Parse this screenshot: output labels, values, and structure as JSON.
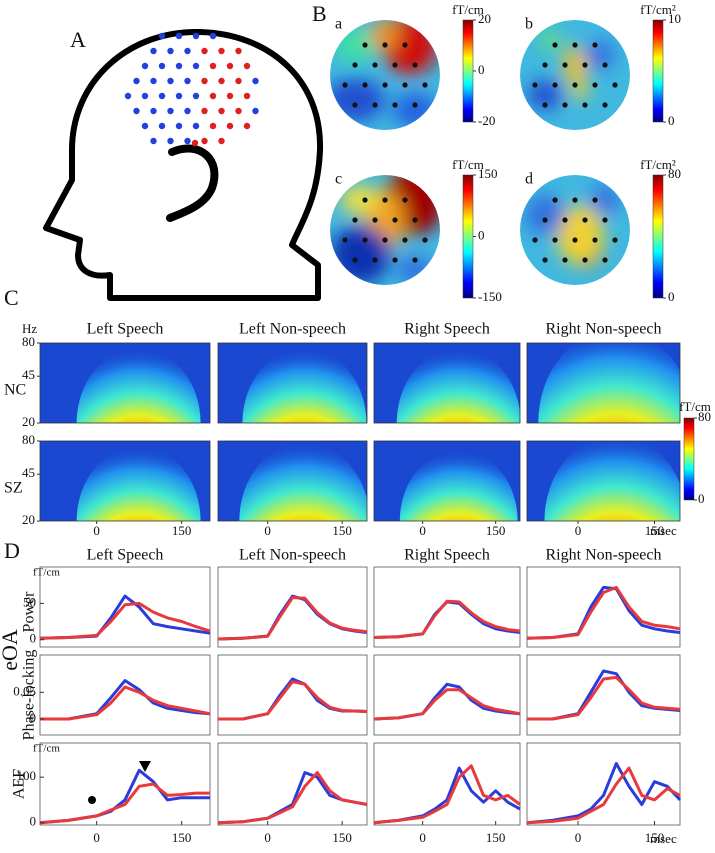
{
  "panel_a": {
    "label": "A"
  },
  "panel_b": {
    "label": "B",
    "maps": [
      {
        "label": "a",
        "unit": "fT/cm",
        "lim": [
          -20,
          20
        ],
        "ticks": [
          20,
          0,
          -20
        ]
      },
      {
        "label": "b",
        "unit": "fT/cm²",
        "lim": [
          0,
          10
        ],
        "ticks": [
          10,
          0
        ]
      },
      {
        "label": "c",
        "unit": "fT/cm",
        "lim": [
          -150,
          150
        ],
        "ticks": [
          150,
          0,
          -150
        ]
      },
      {
        "label": "d",
        "unit": "fT/cm²",
        "lim": [
          0,
          80
        ],
        "ticks": [
          80,
          0
        ]
      }
    ]
  },
  "panel_c": {
    "label": "C",
    "columns": [
      "Left Speech",
      "Left Non-speech",
      "Right Speech",
      "Right Non-speech"
    ],
    "rows": [
      "NC",
      "SZ"
    ],
    "y_unit": "Hz",
    "ylim": [
      20,
      80
    ],
    "yticks": [
      80,
      45,
      20
    ],
    "log_y": true,
    "xlim": [
      -100,
      200
    ],
    "xticks": [
      0,
      150
    ],
    "x_unit": "msec",
    "colorbar": {
      "unit": "fT/cm",
      "lim": [
        0,
        80
      ],
      "ticks": [
        80,
        0
      ]
    }
  },
  "panel_d": {
    "label": "D",
    "columns": [
      "Left Speech",
      "Left Non-speech",
      "Right Speech",
      "Right Non-speech"
    ],
    "group_label": "eOA",
    "x_unit": "msec"
  },
  "chart_data": [
    {
      "type": "line",
      "ylabel": "Power",
      "y_unit": "fT/cm",
      "yticks": [
        0,
        50
      ],
      "xlim": [
        -100,
        200
      ],
      "ylim": [
        -10,
        100
      ],
      "x": [
        -100,
        -50,
        0,
        25,
        50,
        75,
        100,
        125,
        150,
        175,
        200
      ],
      "series": [
        {
          "color": "#2a3cdc",
          "values": [
            2,
            3,
            5,
            30,
            60,
            45,
            22,
            18,
            15,
            12,
            9
          ]
        },
        {
          "color": "#e83a3a",
          "values": [
            2,
            3,
            6,
            25,
            48,
            50,
            38,
            30,
            25,
            18,
            12
          ]
        }
      ]
    },
    {
      "type": "line",
      "xlim": [
        -100,
        200
      ],
      "ylim": [
        -10,
        100
      ],
      "x": [
        -100,
        -50,
        0,
        25,
        50,
        75,
        100,
        125,
        150,
        175,
        200
      ],
      "series": [
        {
          "color": "#2a3cdc",
          "values": [
            1,
            2,
            5,
            35,
            60,
            55,
            35,
            22,
            15,
            12,
            10
          ]
        },
        {
          "color": "#e83a3a",
          "values": [
            1,
            2,
            5,
            32,
            58,
            57,
            37,
            23,
            16,
            13,
            11
          ]
        }
      ]
    },
    {
      "type": "line",
      "xlim": [
        -100,
        200
      ],
      "ylim": [
        -10,
        100
      ],
      "x": [
        -100,
        -50,
        0,
        25,
        50,
        75,
        100,
        125,
        150,
        175,
        200
      ],
      "series": [
        {
          "color": "#2a3cdc",
          "values": [
            3,
            4,
            8,
            35,
            52,
            50,
            35,
            22,
            15,
            12,
            10
          ]
        },
        {
          "color": "#e83a3a",
          "values": [
            3,
            4,
            8,
            33,
            53,
            52,
            37,
            25,
            18,
            14,
            12
          ]
        }
      ]
    },
    {
      "type": "line",
      "xlim": [
        -100,
        200
      ],
      "ylim": [
        -10,
        100
      ],
      "x": [
        -100,
        -50,
        0,
        25,
        50,
        75,
        100,
        125,
        150,
        175,
        200
      ],
      "series": [
        {
          "color": "#2a3cdc",
          "values": [
            2,
            3,
            8,
            45,
            72,
            70,
            40,
            20,
            15,
            12,
            10
          ]
        },
        {
          "color": "#e83a3a",
          "values": [
            2,
            3,
            7,
            38,
            65,
            72,
            45,
            25,
            20,
            18,
            15
          ]
        }
      ]
    },
    {
      "type": "line",
      "ylabel": "Phase-locking",
      "yticks": [
        0,
        0.05
      ],
      "xlim": [
        -100,
        200
      ],
      "ylim": [
        -0.03,
        0.12
      ],
      "x": [
        -100,
        -50,
        0,
        25,
        50,
        75,
        100,
        125,
        150,
        175,
        200
      ],
      "series": [
        {
          "color": "#2a3cdc",
          "values": [
            0,
            0,
            0.01,
            0.04,
            0.072,
            0.055,
            0.03,
            0.02,
            0.016,
            0.012,
            0.01
          ]
        },
        {
          "color": "#e83a3a",
          "values": [
            0,
            0,
            0.008,
            0.03,
            0.06,
            0.05,
            0.035,
            0.025,
            0.02,
            0.015,
            0.01
          ]
        }
      ]
    },
    {
      "type": "line",
      "xlim": [
        -100,
        200
      ],
      "ylim": [
        -0.03,
        0.12
      ],
      "x": [
        -100,
        -50,
        0,
        25,
        50,
        75,
        100,
        125,
        150,
        175,
        200
      ],
      "series": [
        {
          "color": "#2a3cdc",
          "values": [
            0,
            0,
            0.01,
            0.045,
            0.075,
            0.065,
            0.035,
            0.02,
            0.015,
            0.015,
            0.014
          ]
        },
        {
          "color": "#e83a3a",
          "values": [
            0,
            0,
            0.01,
            0.04,
            0.07,
            0.065,
            0.04,
            0.022,
            0.016,
            0.015,
            0.014
          ]
        }
      ]
    },
    {
      "type": "line",
      "xlim": [
        -100,
        200
      ],
      "ylim": [
        -0.03,
        0.12
      ],
      "x": [
        -100,
        -50,
        0,
        25,
        50,
        75,
        100,
        125,
        150,
        175,
        200
      ],
      "series": [
        {
          "color": "#2a3cdc",
          "values": [
            0,
            0.002,
            0.01,
            0.04,
            0.065,
            0.06,
            0.035,
            0.02,
            0.015,
            0.012,
            0.01
          ]
        },
        {
          "color": "#e83a3a",
          "values": [
            0,
            0.002,
            0.01,
            0.035,
            0.055,
            0.055,
            0.04,
            0.025,
            0.018,
            0.014,
            0.01
          ]
        }
      ]
    },
    {
      "type": "line",
      "xlim": [
        -100,
        200
      ],
      "ylim": [
        -0.03,
        0.12
      ],
      "x": [
        -100,
        -50,
        0,
        25,
        50,
        75,
        100,
        125,
        150,
        175,
        200
      ],
      "series": [
        {
          "color": "#2a3cdc",
          "values": [
            0,
            0,
            0.01,
            0.05,
            0.09,
            0.085,
            0.05,
            0.025,
            0.02,
            0.018,
            0.016
          ]
        },
        {
          "color": "#e83a3a",
          "values": [
            0,
            0,
            0.008,
            0.04,
            0.075,
            0.078,
            0.055,
            0.03,
            0.022,
            0.02,
            0.018
          ]
        }
      ]
    },
    {
      "type": "line",
      "ylabel": "AEF",
      "y_unit": "fT/cm",
      "yticks": [
        0,
        100
      ],
      "xticks": [
        0,
        150
      ],
      "xlim": [
        -100,
        200
      ],
      "ylim": [
        -5,
        175
      ],
      "x": [
        -100,
        -50,
        0,
        25,
        50,
        75,
        100,
        125,
        150,
        175,
        200
      ],
      "series": [
        {
          "color": "#2a3cdc",
          "values": [
            0,
            5,
            15,
            25,
            50,
            115,
            90,
            50,
            55,
            55,
            55
          ]
        },
        {
          "color": "#e83a3a",
          "values": [
            0,
            5,
            15,
            28,
            40,
            80,
            85,
            60,
            62,
            65,
            65
          ]
        }
      ]
    },
    {
      "type": "line",
      "xticks": [
        0,
        150
      ],
      "xlim": [
        -100,
        200
      ],
      "ylim": [
        -5,
        175
      ],
      "x": [
        -100,
        -50,
        0,
        25,
        50,
        75,
        100,
        125,
        150,
        175,
        200
      ],
      "series": [
        {
          "color": "#2a3cdc",
          "values": [
            0,
            2,
            10,
            25,
            40,
            110,
            100,
            60,
            50,
            45,
            40
          ]
        },
        {
          "color": "#e83a3a",
          "values": [
            0,
            2,
            10,
            22,
            35,
            80,
            110,
            70,
            50,
            45,
            40
          ]
        }
      ]
    },
    {
      "type": "line",
      "xticks": [
        0,
        150
      ],
      "xlim": [
        -100,
        200
      ],
      "ylim": [
        -5,
        175
      ],
      "x": [
        -100,
        -50,
        0,
        25,
        50,
        75,
        100,
        125,
        150,
        175,
        200
      ],
      "series": [
        {
          "color": "#2a3cdc",
          "values": [
            0,
            5,
            15,
            30,
            50,
            120,
            70,
            45,
            70,
            45,
            30
          ]
        },
        {
          "color": "#e83a3a",
          "values": [
            0,
            5,
            12,
            25,
            40,
            100,
            125,
            60,
            50,
            60,
            40
          ]
        }
      ]
    },
    {
      "type": "line",
      "xticks": [
        0,
        150
      ],
      "xlim": [
        -100,
        200
      ],
      "ylim": [
        -5,
        175
      ],
      "x": [
        -100,
        -50,
        0,
        25,
        50,
        75,
        100,
        125,
        150,
        175,
        200
      ],
      "series": [
        {
          "color": "#2a3cdc",
          "values": [
            0,
            5,
            15,
            30,
            60,
            130,
            80,
            40,
            90,
            80,
            50
          ]
        },
        {
          "color": "#e83a3a",
          "values": [
            0,
            3,
            10,
            25,
            40,
            85,
            120,
            60,
            50,
            75,
            60
          ]
        }
      ]
    }
  ]
}
